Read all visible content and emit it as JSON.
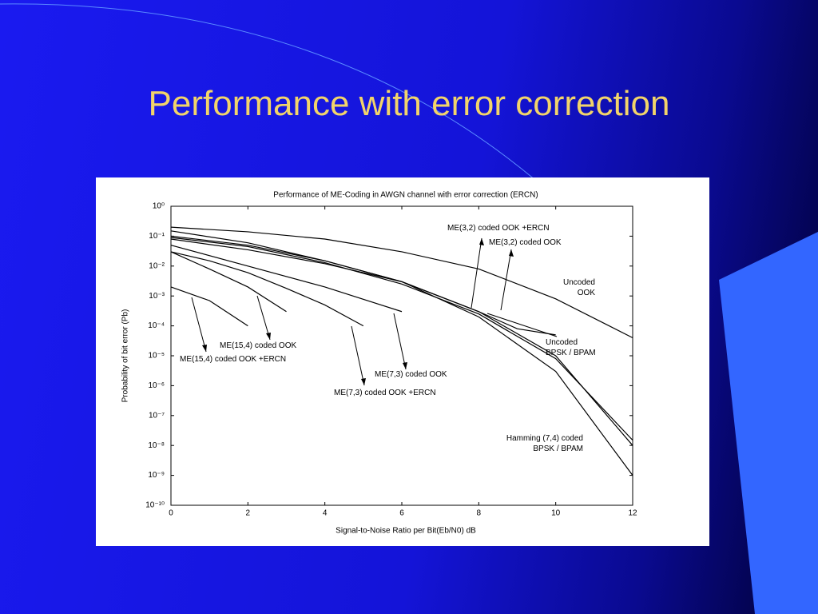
{
  "slide_title": "Performance with error correction",
  "chart_data": {
    "type": "line",
    "title": "Performance of ME-Coding in AWGN channel with error correction (ERCN)",
    "xlabel": "Signal-to-Noise Ratio per Bit(Eb/N0) dB",
    "ylabel": "Probability of bit error (Pb)",
    "log_y": true,
    "xlim": [
      0,
      12
    ],
    "xticks": [
      0,
      2,
      4,
      6,
      8,
      10,
      12
    ],
    "ylim": [
      1e-10,
      1
    ],
    "yticks": [
      {
        "value": 1,
        "label": "10⁰"
      },
      {
        "value": 0.1,
        "label": "10⁻¹"
      },
      {
        "value": 0.01,
        "label": "10⁻²"
      },
      {
        "value": 0.001,
        "label": "10⁻³"
      },
      {
        "value": 0.0001,
        "label": "10⁻⁴"
      },
      {
        "value": 1e-05,
        "label": "10⁻⁵"
      },
      {
        "value": 1e-06,
        "label": "10⁻⁶"
      },
      {
        "value": 1e-07,
        "label": "10⁻⁷"
      },
      {
        "value": 1e-08,
        "label": "10⁻⁸"
      },
      {
        "value": 1e-09,
        "label": "10⁻⁹"
      },
      {
        "value": 1e-10,
        "label": "10⁻¹⁰"
      }
    ],
    "series": [
      {
        "name": "Uncoded\nOOK",
        "color": "#000000",
        "x": [
          0,
          2,
          4,
          6,
          8,
          10,
          12
        ],
        "values": [
          0.2,
          0.14,
          0.08,
          0.03,
          0.008,
          0.0008,
          4e-05
        ]
      },
      {
        "name": "Uncoded\nBPSK / BPAM",
        "color": "#000000",
        "x": [
          0,
          2,
          4,
          6,
          8,
          9,
          10
        ],
        "values": [
          0.08,
          0.035,
          0.012,
          0.003,
          0.0003,
          8e-05,
          5e-05
        ]
      },
      {
        "name": "Hamming (7,4) coded\nBPSK / BPAM",
        "color": "#000000",
        "x": [
          0,
          2,
          4,
          6,
          8,
          10,
          12
        ],
        "values": [
          0.15,
          0.06,
          0.015,
          0.003,
          0.0002,
          3e-06,
          1e-09
        ]
      },
      {
        "name": "ME(3,2) coded OOK",
        "color": "#000000",
        "x": [
          0,
          2,
          4,
          6,
          8,
          10,
          12
        ],
        "values": [
          0.1,
          0.05,
          0.015,
          0.003,
          0.0003,
          1e-05,
          1e-08
        ]
      },
      {
        "name": "ME(3,2) coded OOK +ERCN",
        "color": "#000000",
        "x": [
          0,
          2,
          4,
          6,
          8,
          10,
          12
        ],
        "values": [
          0.09,
          0.045,
          0.013,
          0.0025,
          0.00025,
          8e-06,
          1.5e-08
        ]
      },
      {
        "name": "ME(15,4) coded OOK",
        "color": "#000000",
        "x": [
          0,
          1,
          2,
          3
        ],
        "values": [
          0.03,
          0.008,
          0.002,
          0.0003
        ]
      },
      {
        "name": "ME(15,4) coded OOK +ERCN",
        "color": "#000000",
        "x": [
          0,
          1,
          2
        ],
        "values": [
          0.002,
          0.0007,
          0.0001
        ]
      },
      {
        "name": "ME(7,3) coded OOK",
        "color": "#000000",
        "x": [
          0,
          2,
          4,
          6
        ],
        "values": [
          0.05,
          0.01,
          0.002,
          0.0003
        ]
      },
      {
        "name": "ME(7,3) coded OOK +ERCN",
        "color": "#000000",
        "x": [
          0,
          1,
          2,
          3,
          4,
          5
        ],
        "values": [
          0.03,
          0.015,
          0.006,
          0.0018,
          0.0005,
          0.0001
        ]
      }
    ]
  }
}
